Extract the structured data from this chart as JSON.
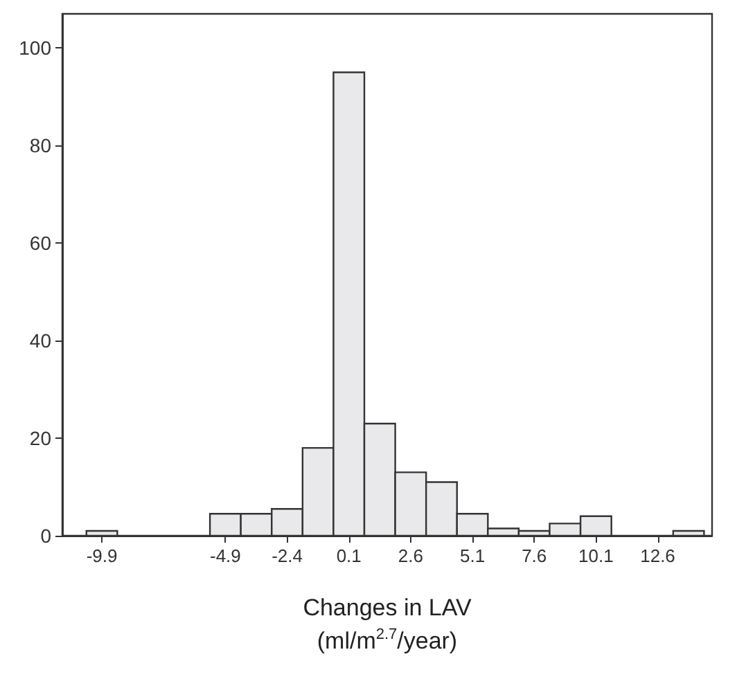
{
  "chart_data": {
    "type": "histogram",
    "xlabel": "Changes in LAV\n(ml/m$^{2.7}$/year)",
    "bins": [
      -10.525,
      -9.275,
      -8.025,
      -6.775,
      -5.525,
      -4.275,
      -3.025,
      -1.775,
      -0.525,
      0.725,
      1.975,
      3.225,
      4.475,
      5.725,
      6.975,
      8.225,
      9.475,
      10.725,
      11.975,
      13.225,
      14.475
    ],
    "values": [
      1,
      0,
      0,
      0,
      4.5,
      4.5,
      5.5,
      18,
      95,
      23,
      13,
      11,
      4.5,
      1.5,
      1,
      2.5,
      4,
      0,
      0,
      1
    ],
    "color": "#e9e9eb",
    "xlim": [
      -11.5,
      14.8
    ],
    "xticks": [
      -9.9,
      -4.9,
      -2.4,
      0.1,
      2.6,
      5.1,
      7.6,
      10.1,
      12.6
    ],
    "ylim": [
      0,
      107
    ],
    "yticks": [
      0,
      20,
      40,
      60,
      80,
      100
    ],
    "grid": false,
    "legend": false
  }
}
